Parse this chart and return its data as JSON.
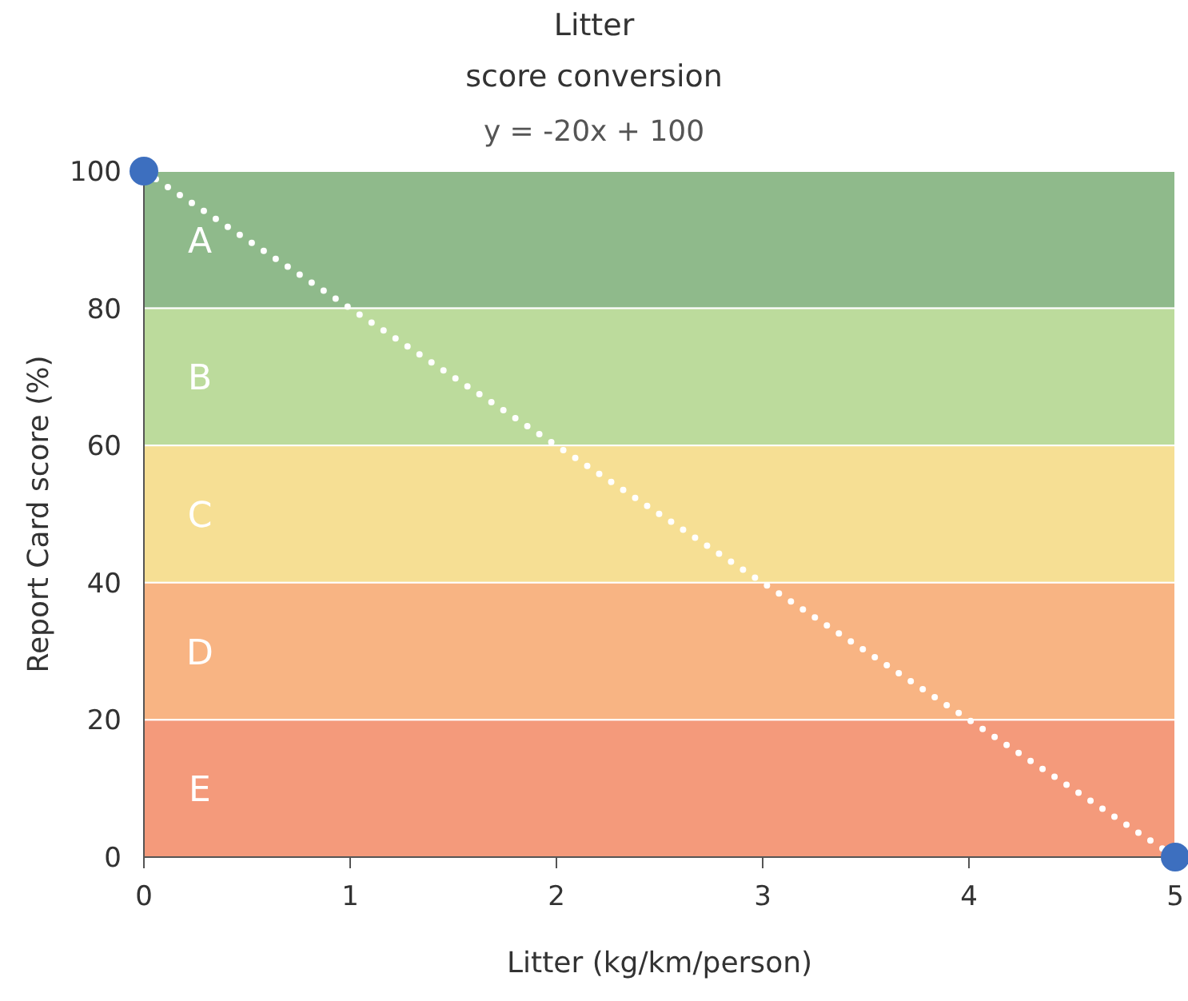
{
  "chart_data": {
    "type": "line",
    "title": "Litter",
    "subtitle": "score conversion",
    "annotations": [
      "y = -20x + 100"
    ],
    "xlabel": "Litter (kg/km/person)",
    "ylabel": "Report Card score (%)",
    "xlim": [
      0,
      5
    ],
    "xticks": [
      0,
      1,
      2,
      3,
      4,
      5
    ],
    "ylim": [
      0,
      100
    ],
    "yticks": [
      0,
      20,
      40,
      60,
      80,
      100
    ],
    "bands": [
      {
        "axis": "y",
        "from": 80,
        "to": 100,
        "label": "A",
        "color": "#8fba8b"
      },
      {
        "axis": "y",
        "from": 60,
        "to": 80,
        "label": "B",
        "color": "#bcdb9c"
      },
      {
        "axis": "y",
        "from": 40,
        "to": 60,
        "label": "C",
        "color": "#f6df94"
      },
      {
        "axis": "y",
        "from": 20,
        "to": 40,
        "label": "D",
        "color": "#f8b483"
      },
      {
        "axis": "y",
        "from": 0,
        "to": 20,
        "label": "E",
        "color": "#f49a7b"
      }
    ],
    "x": [
      0,
      5
    ],
    "series": [
      {
        "values": [
          100,
          0
        ],
        "color": "#ffffff",
        "line_style": "dotted",
        "marker": "none"
      },
      {
        "type": "scatter",
        "values": [
          100,
          0
        ],
        "color": "#3d6fbf",
        "marker": "circle"
      }
    ]
  }
}
